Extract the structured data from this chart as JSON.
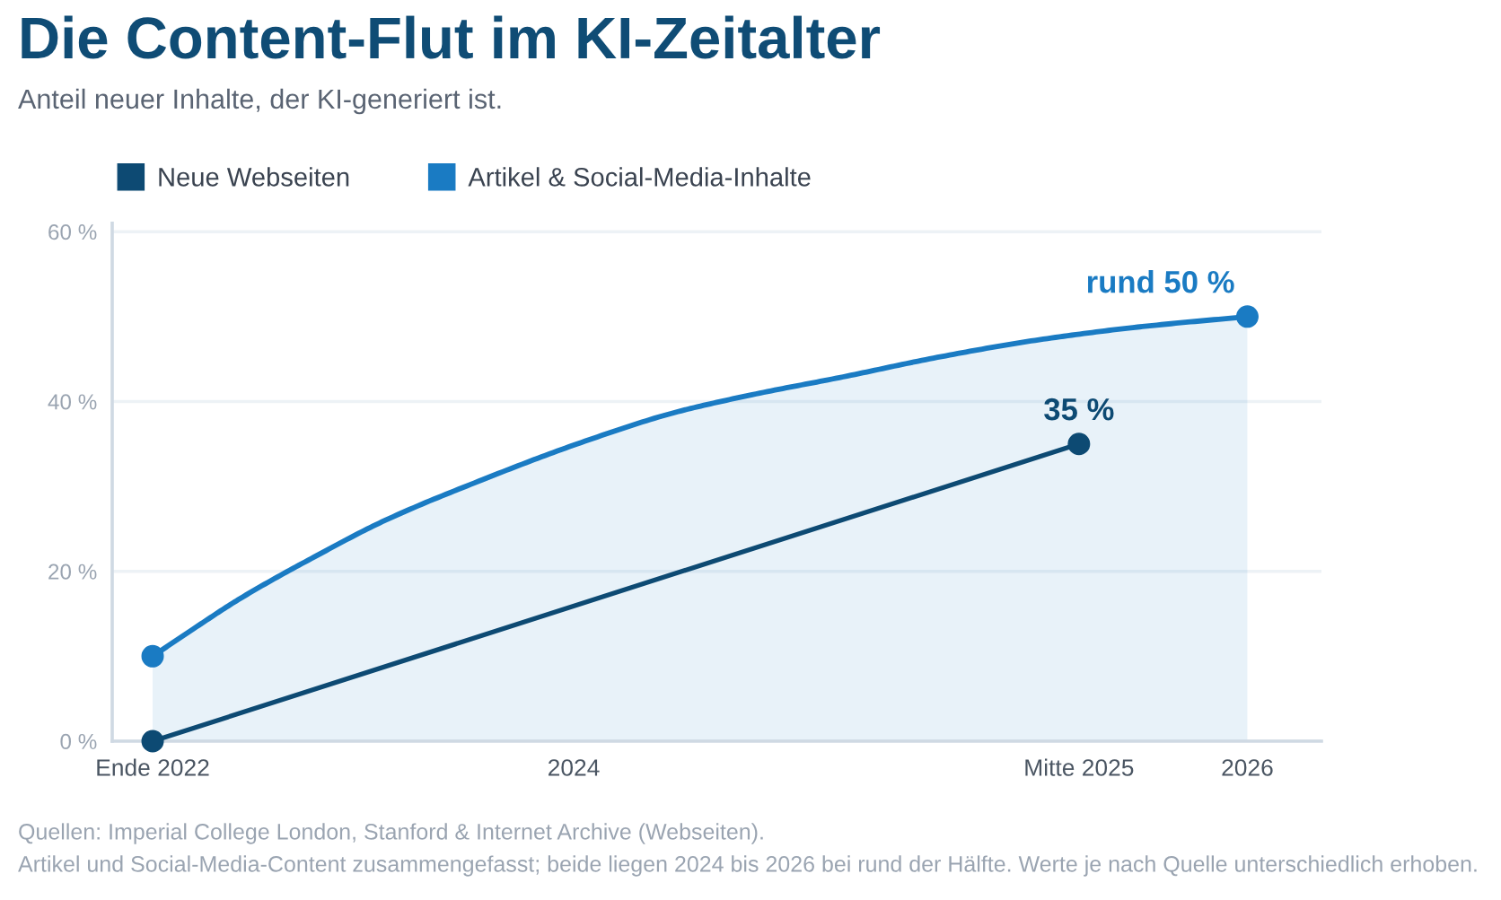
{
  "chart_data": {
    "type": "line",
    "title": "Die Content-Flut im KI-Zeitalter",
    "subtitle": "Anteil neuer Inhalte, der KI-generiert ist.",
    "series": [
      {
        "name": "Neue Webseiten",
        "color": "#0d4a73",
        "x": [
          2022.75,
          2025.5
        ],
        "values": [
          0,
          35
        ],
        "value_labels": [
          null,
          "35 %"
        ]
      },
      {
        "name": "Artikel & Social-Media-Inhalte",
        "type": "area",
        "marker": "none",
        "color": "#1a7bc3",
        "x": [
          2022.75,
          2022.87,
          2023.01,
          2023.23,
          2023.44,
          2023.73,
          2024.01,
          2024.3,
          2024.53,
          2024.8,
          2025.08,
          2025.37,
          2025.66,
          2026
        ],
        "values": [
          10,
          13.2,
          16.8,
          21.7,
          26.0,
          30.8,
          35.0,
          38.7,
          40.8,
          42.9,
          45.2,
          47.2,
          48.7,
          50
        ]
      },
      {
        "type": "scatter",
        "color": "#1a7bc3",
        "x": [
          2022.75,
          2026
        ],
        "values": [
          10,
          50
        ],
        "value_labels": [
          null,
          "rund 50 %"
        ]
      }
    ],
    "xlim": [
      2022.63,
      2026.22
    ],
    "xticks": [
      {
        "value": 2022.75,
        "label": "Ende 2022"
      },
      {
        "value": 2024,
        "label": "2024"
      },
      {
        "value": 2025.5,
        "label": "Mitte 2025"
      },
      {
        "value": 2026,
        "label": "2026"
      }
    ],
    "ylim": [
      0,
      61
    ],
    "yticks": [
      {
        "value": 0,
        "label": "0 %"
      },
      {
        "value": 20,
        "label": "20 %"
      },
      {
        "value": 40,
        "label": "40 %"
      },
      {
        "value": 60,
        "label": "60 %"
      }
    ],
    "grid": "y",
    "legend": "top left",
    "marker": "circle",
    "line_style": "solid",
    "annotations": [
      "Quellen: Imperial College London, Stanford & Internet Archive (Webseiten).",
      "Artikel und Social-Media-Content zusammengefasst; beide liegen 2024 bis 2026 bei rund der Hälfte. Werte je nach Quelle unterschiedlich erhoben."
    ]
  }
}
